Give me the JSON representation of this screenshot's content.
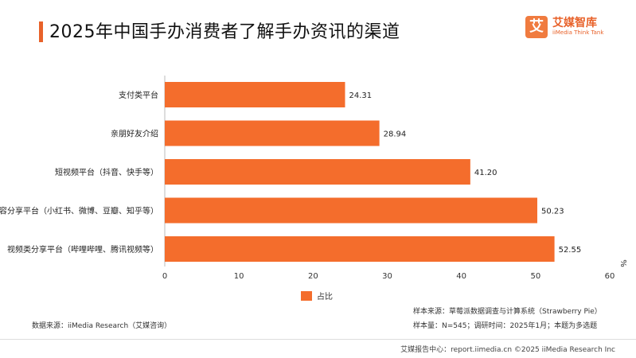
{
  "header": {
    "title": "2025年中国手办消费者了解手办资讯的渠道",
    "logo_mark": "艾",
    "logo_name": "艾媒智库",
    "logo_sub": "iiMedia Think Tank"
  },
  "chart_data": {
    "type": "bar",
    "orientation": "horizontal",
    "categories": [
      "支付类平台",
      "亲朋好友介绍",
      "短视频平台（抖音、快手等）",
      "内容分享平台（小红书、微博、豆瓣、知乎等）",
      "视频类分享平台（哔哩哔哩、腾讯视频等）"
    ],
    "series": [
      {
        "name": "占比",
        "values": [
          24.31,
          28.94,
          41.2,
          50.23,
          52.55
        ]
      }
    ],
    "value_labels": [
      "24.31",
      "28.94",
      "41.20",
      "50.23",
      "52.55"
    ],
    "xlim": [
      0,
      60
    ],
    "xticks": [
      0,
      10,
      20,
      30,
      40,
      50,
      60
    ],
    "unit": "%",
    "bar_color": "#f46d2c",
    "grid": false,
    "legend_position": "bottom"
  },
  "notes": {
    "source": "数据来源：iiMedia Research（艾媒咨询）",
    "sample_source": "样本来源：草莓派数据调查与计算系统（Strawberry Pie）",
    "sample_size": "样本量：N=545；调研时间：2025年1月；本题为多选题"
  },
  "footer": {
    "text": "艾媒报告中心：report.iimedia.cn   ©2025 iiMedia Research Inc"
  }
}
